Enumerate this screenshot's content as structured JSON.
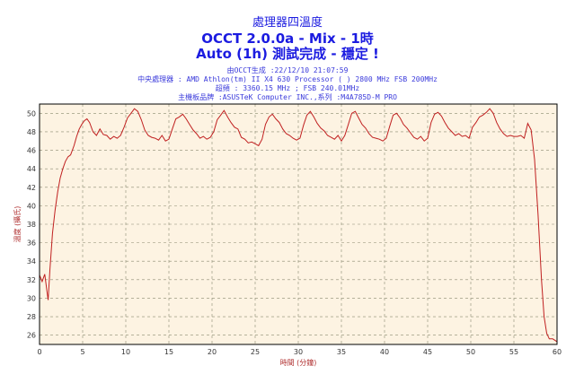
{
  "header": {
    "title": "處理器四溫度",
    "subtitle": "OCCT 2.0.0a - Mix - 1時",
    "status": "Auto (1h) 測試完成 - 穩定 !",
    "generated": "由OCCT生成 :22/12/10 21:07:59",
    "cpu": "中央處理器 : AMD Athlon(tm) II X4 630 Processor (  ) 2800 MHz FSB 200MHz",
    "overclock": "超頻 : 3360.15 MHz ; FSB 240.01MHz",
    "motherboard": "主機板品牌 :ASUSTeK Computer INC.,系列 :M4A785D-M PRO"
  },
  "colors": {
    "title": "#1b1be0",
    "plot_bg": "#fdf3e2",
    "grid": "#8a8a70",
    "line": "#c02020"
  },
  "chart_data": {
    "type": "line",
    "xlabel": "時間 (分鐘)",
    "ylabel": "溫度 (攝氏)",
    "xlim": [
      0,
      60
    ],
    "ylim": [
      25,
      51
    ],
    "xticks": [
      0,
      5,
      10,
      15,
      20,
      25,
      30,
      35,
      40,
      45,
      50,
      55,
      60
    ],
    "yticks": [
      26,
      28,
      30,
      32,
      34,
      36,
      38,
      40,
      42,
      44,
      46,
      48,
      50
    ],
    "grid": true,
    "series": [
      {
        "x": [
          0,
          0.3,
          0.6,
          0.9,
          1.0,
          1.2,
          1.5,
          1.8,
          2.1,
          2.4,
          2.7,
          3.0,
          3.3,
          3.6,
          4.0,
          4.3,
          4.6,
          4.9,
          5.2,
          5.5,
          5.8,
          6.2,
          6.6,
          7.0,
          7.4,
          7.8,
          8.2,
          8.6,
          9.0,
          9.4,
          9.8,
          10.2,
          10.6,
          11.0,
          11.4,
          11.8,
          12.2,
          12.6,
          13.0,
          13.4,
          13.8,
          14.2,
          14.6,
          15.0,
          15.4,
          15.8,
          16.2,
          16.6,
          17.0,
          17.4,
          17.8,
          18.2,
          18.6,
          19.0,
          19.4,
          19.8,
          20.2,
          20.6,
          21.0,
          21.4,
          21.8,
          22.2,
          22.6,
          23.0,
          23.4,
          23.8,
          24.2,
          24.6,
          25.0,
          25.4,
          25.8,
          26.2,
          26.6,
          27.0,
          27.4,
          27.8,
          28.2,
          28.6,
          29.0,
          29.4,
          29.8,
          30.2,
          30.6,
          31.0,
          31.4,
          31.8,
          32.2,
          32.6,
          33.0,
          33.4,
          33.8,
          34.2,
          34.6,
          35.0,
          35.4,
          35.8,
          36.2,
          36.6,
          37.0,
          37.4,
          37.8,
          38.2,
          38.6,
          39.0,
          39.4,
          39.8,
          40.2,
          40.6,
          41.0,
          41.4,
          41.8,
          42.2,
          42.6,
          43.0,
          43.4,
          43.8,
          44.2,
          44.6,
          45.0,
          45.4,
          45.8,
          46.2,
          46.6,
          47.0,
          47.4,
          47.8,
          48.2,
          48.6,
          49.0,
          49.4,
          49.8,
          50.2,
          50.6,
          51.0,
          51.4,
          51.8,
          52.2,
          52.6,
          53.0,
          53.4,
          53.8,
          54.2,
          54.6,
          55.0,
          55.4,
          55.8,
          56.2,
          56.6,
          57.0,
          57.4,
          57.8,
          58.2,
          58.5,
          58.8,
          59.1,
          59.5,
          60
        ],
        "y": [
          32.5,
          31.8,
          32.6,
          30.5,
          29.8,
          33.0,
          37.0,
          39.5,
          41.5,
          43.0,
          44.0,
          44.8,
          45.3,
          45.5,
          46.5,
          47.5,
          48.3,
          48.8,
          49.2,
          49.4,
          49.0,
          48.0,
          47.6,
          48.3,
          47.7,
          47.6,
          47.2,
          47.5,
          47.3,
          47.6,
          48.5,
          49.5,
          50.0,
          50.5,
          50.2,
          49.3,
          48.2,
          47.6,
          47.4,
          47.3,
          47.1,
          47.6,
          47.0,
          47.2,
          48.3,
          49.4,
          49.6,
          49.9,
          49.4,
          48.8,
          48.2,
          47.8,
          47.3,
          47.5,
          47.2,
          47.4,
          48.0,
          49.3,
          49.8,
          50.3,
          49.6,
          49.0,
          48.5,
          48.3,
          47.4,
          47.2,
          46.8,
          46.9,
          46.7,
          46.5,
          47.2,
          48.8,
          49.6,
          49.9,
          49.4,
          49.0,
          48.3,
          47.8,
          47.6,
          47.3,
          47.1,
          47.3,
          48.7,
          49.8,
          50.2,
          49.6,
          48.9,
          48.4,
          48.1,
          47.6,
          47.4,
          47.2,
          47.6,
          47.0,
          47.6,
          48.8,
          50.0,
          50.2,
          49.5,
          48.8,
          48.4,
          47.8,
          47.4,
          47.3,
          47.2,
          47.0,
          47.3,
          48.6,
          49.8,
          50.0,
          49.5,
          48.8,
          48.4,
          47.9,
          47.4,
          47.2,
          47.5,
          47.0,
          47.3,
          49.0,
          49.9,
          50.1,
          49.7,
          49.0,
          48.4,
          48.0,
          47.6,
          47.8,
          47.5,
          47.6,
          47.3,
          48.5,
          49.0,
          49.6,
          49.8,
          50.1,
          50.5,
          50.0,
          49.0,
          48.3,
          47.8,
          47.5,
          47.6,
          47.5,
          47.5,
          47.6,
          47.3,
          48.9,
          48.2,
          45.0,
          39.0,
          32.0,
          28.0,
          26.2,
          25.6,
          25.6,
          25.3
        ]
      }
    ]
  }
}
